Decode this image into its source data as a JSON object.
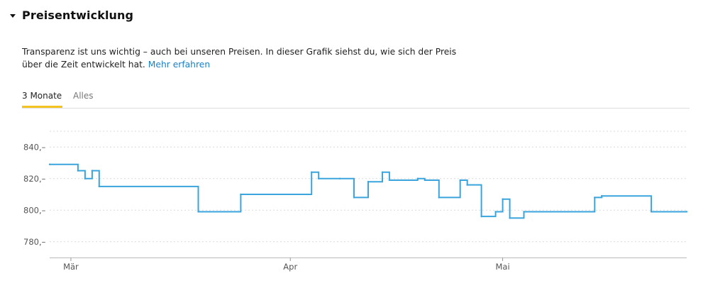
{
  "section": {
    "title": "Preisentwicklung",
    "description_text": "Transparenz ist uns wichtig – auch bei unseren Preisen. In dieser Grafik siehst du, wie sich der Preis über die Zeit entwickelt hat.",
    "link_label": "Mehr erfahren"
  },
  "tabs": [
    {
      "label": "3 Monate",
      "active": true
    },
    {
      "label": "Alles",
      "active": false
    }
  ],
  "colors": {
    "line": "#3aa5dd",
    "tab_active": "#f4c320",
    "link": "#1b80c5"
  },
  "chart_data": {
    "type": "line",
    "step": true,
    "title": "",
    "xlabel": "",
    "ylabel": "",
    "ylim": [
      770,
      850
    ],
    "yticks": [
      780,
      800,
      820,
      840
    ],
    "ytick_labels": [
      "780,–",
      "800,–",
      "820,–",
      "840,–"
    ],
    "grid": true,
    "xticks": [
      {
        "label": "Mär",
        "x": "2024-03-01"
      },
      {
        "label": "Apr",
        "x": "2024-04-01"
      },
      {
        "label": "Mai",
        "x": "2024-05-01"
      }
    ],
    "xlim": [
      "2024-02-27",
      "2024-05-27"
    ],
    "series": [
      {
        "points": [
          [
            "2024-02-27",
            829
          ],
          [
            "2024-03-02",
            825
          ],
          [
            "2024-03-03",
            820
          ],
          [
            "2024-03-04",
            825
          ],
          [
            "2024-03-05",
            815
          ],
          [
            "2024-03-19",
            799
          ],
          [
            "2024-03-25",
            810
          ],
          [
            "2024-04-04",
            824
          ],
          [
            "2024-04-05",
            820
          ],
          [
            "2024-04-08",
            820
          ],
          [
            "2024-04-10",
            808
          ],
          [
            "2024-04-12",
            818
          ],
          [
            "2024-04-14",
            824
          ],
          [
            "2024-04-15",
            819
          ],
          [
            "2024-04-19",
            820
          ],
          [
            "2024-04-20",
            819
          ],
          [
            "2024-04-22",
            808
          ],
          [
            "2024-04-25",
            819
          ],
          [
            "2024-04-26",
            816
          ],
          [
            "2024-04-28",
            796
          ],
          [
            "2024-04-30",
            799
          ],
          [
            "2024-05-01",
            807
          ],
          [
            "2024-05-02",
            795
          ],
          [
            "2024-05-04",
            799
          ],
          [
            "2024-05-14",
            808
          ],
          [
            "2024-05-15",
            809
          ],
          [
            "2024-05-22",
            799
          ],
          [
            "2024-05-27",
            799
          ]
        ]
      }
    ]
  }
}
